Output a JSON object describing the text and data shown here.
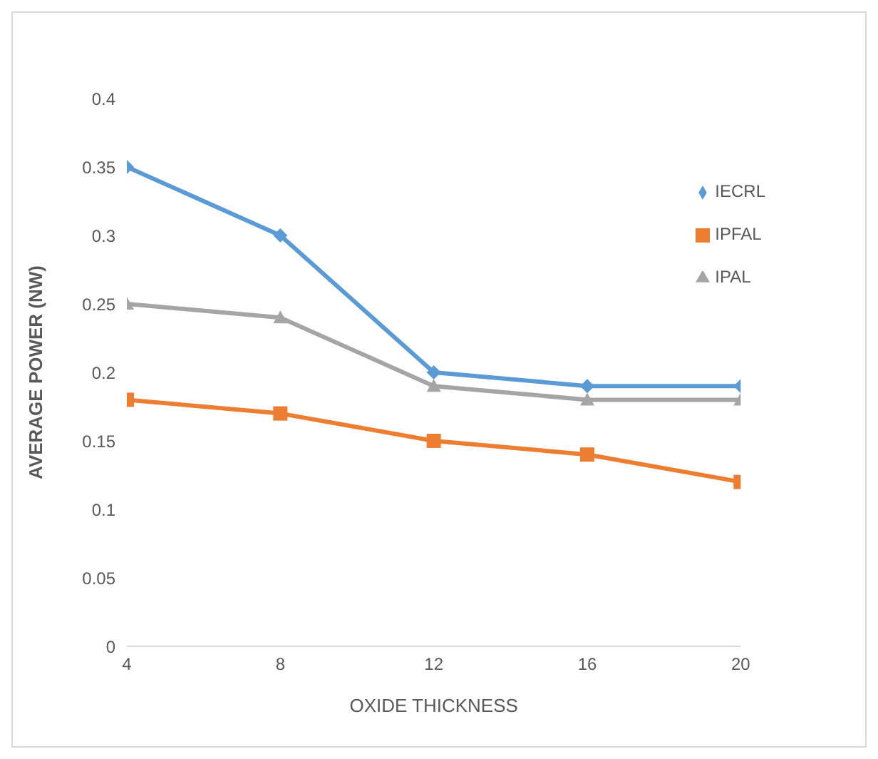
{
  "chart_data": {
    "type": "line",
    "xlabel": "OXIDE THICKNESS",
    "ylabel": "AVERAGE POWER (NW)",
    "x": [
      4,
      8,
      12,
      16,
      20
    ],
    "xlim": [
      4,
      20
    ],
    "xticks": [
      4,
      8,
      12,
      16,
      20
    ],
    "ylim": [
      0,
      0.4
    ],
    "yticks": [
      0,
      0.05,
      0.1,
      0.15,
      0.2,
      0.25,
      0.3,
      0.35,
      0.4
    ],
    "grid": false,
    "legend": "top right",
    "series": [
      {
        "name": "IECRL",
        "color": "#5b9bd5",
        "marker": "diamond",
        "values": [
          0.35,
          0.3,
          0.2,
          0.19,
          0.19
        ]
      },
      {
        "name": "IPFAL",
        "color": "#ed7d31",
        "marker": "square",
        "values": [
          0.18,
          0.17,
          0.15,
          0.14,
          0.12
        ]
      },
      {
        "name": "IPAL",
        "color": "#a5a5a5",
        "marker": "triangle",
        "values": [
          0.25,
          0.24,
          0.19,
          0.18,
          0.18
        ]
      }
    ]
  }
}
